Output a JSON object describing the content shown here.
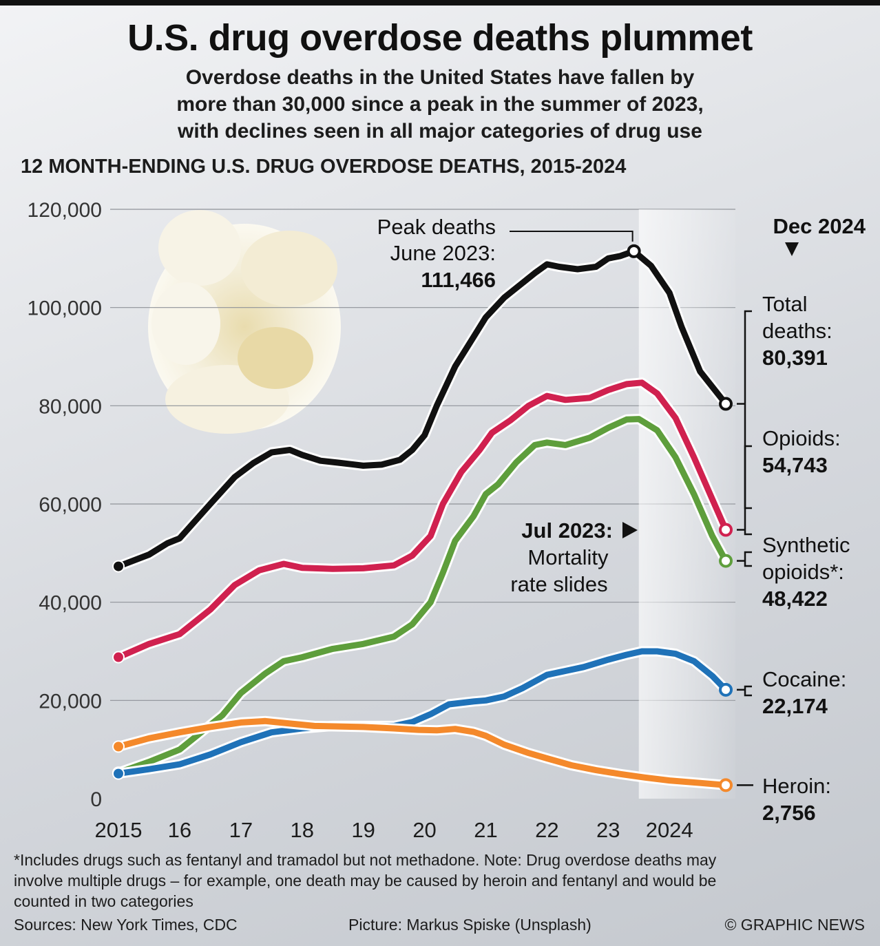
{
  "title": "U.S. drug overdose deaths plummet",
  "subtitle_lines": [
    "Overdose deaths in the United States have fallen by",
    "more than 30,000 since a peak in the summer of 2023,",
    "with declines seen in all major categories of drug use"
  ],
  "chart_data": {
    "type": "line",
    "title": "12 MONTH-ENDING U.S. DRUG OVERDOSE DEATHS, 2015-2024",
    "xlabel": "",
    "ylabel": "",
    "xlim": [
      2015.0,
      2024.92
    ],
    "ylim": [
      0,
      120000
    ],
    "yticks": [
      0,
      20000,
      40000,
      60000,
      80000,
      100000,
      120000
    ],
    "ytick_labels": [
      "0",
      "20,000",
      "40,000",
      "60,000",
      "80,000",
      "100,000",
      "120,000"
    ],
    "xticks": [
      2015,
      2016,
      2017,
      2018,
      2019,
      2020,
      2021,
      2022,
      2023,
      2024
    ],
    "xtick_labels": [
      "2015",
      "16",
      "17",
      "18",
      "19",
      "20",
      "21",
      "22",
      "23",
      "2024"
    ],
    "grid": true,
    "highlight_band": [
      2023.5,
      2024.92
    ],
    "series": [
      {
        "name": "Total deaths",
        "color": "#111111",
        "points": [
          [
            2015.0,
            47300
          ],
          [
            2015.5,
            49700
          ],
          [
            2015.8,
            52000
          ],
          [
            2016.0,
            53000
          ],
          [
            2016.5,
            60000
          ],
          [
            2016.9,
            65500
          ],
          [
            2017.2,
            68300
          ],
          [
            2017.5,
            70500
          ],
          [
            2017.8,
            71000
          ],
          [
            2018.0,
            70000
          ],
          [
            2018.3,
            68800
          ],
          [
            2018.6,
            68400
          ],
          [
            2019.0,
            67800
          ],
          [
            2019.3,
            68000
          ],
          [
            2019.6,
            69000
          ],
          [
            2019.8,
            71000
          ],
          [
            2020.0,
            74000
          ],
          [
            2020.2,
            80000
          ],
          [
            2020.5,
            88000
          ],
          [
            2020.8,
            94000
          ],
          [
            2021.0,
            98000
          ],
          [
            2021.3,
            102000
          ],
          [
            2021.6,
            105000
          ],
          [
            2021.8,
            107000
          ],
          [
            2022.0,
            108800
          ],
          [
            2022.2,
            108300
          ],
          [
            2022.5,
            107800
          ],
          [
            2022.8,
            108300
          ],
          [
            2023.0,
            110000
          ],
          [
            2023.2,
            110500
          ],
          [
            2023.42,
            111466
          ],
          [
            2023.7,
            108500
          ],
          [
            2024.0,
            103000
          ],
          [
            2024.2,
            96000
          ],
          [
            2024.5,
            87000
          ],
          [
            2024.92,
            80391
          ]
        ]
      },
      {
        "name": "Opioids",
        "color": "#d0214f",
        "points": [
          [
            2015.0,
            28800
          ],
          [
            2015.5,
            31500
          ],
          [
            2016.0,
            33500
          ],
          [
            2016.5,
            38500
          ],
          [
            2016.9,
            43500
          ],
          [
            2017.3,
            46500
          ],
          [
            2017.7,
            47800
          ],
          [
            2018.0,
            47000
          ],
          [
            2018.5,
            46800
          ],
          [
            2019.0,
            46900
          ],
          [
            2019.5,
            47500
          ],
          [
            2019.8,
            49500
          ],
          [
            2020.1,
            53500
          ],
          [
            2020.3,
            60000
          ],
          [
            2020.6,
            66500
          ],
          [
            2020.9,
            71000
          ],
          [
            2021.1,
            74500
          ],
          [
            2021.4,
            77000
          ],
          [
            2021.7,
            80000
          ],
          [
            2022.0,
            82000
          ],
          [
            2022.3,
            81200
          ],
          [
            2022.7,
            81600
          ],
          [
            2023.0,
            83200
          ],
          [
            2023.3,
            84400
          ],
          [
            2023.55,
            84700
          ],
          [
            2023.8,
            82500
          ],
          [
            2024.1,
            77500
          ],
          [
            2024.4,
            69500
          ],
          [
            2024.7,
            61000
          ],
          [
            2024.92,
            54743
          ]
        ]
      },
      {
        "name": "Synthetic opioids*",
        "color": "#5e9e3c",
        "points": [
          [
            2015.0,
            5300
          ],
          [
            2015.5,
            7500
          ],
          [
            2016.0,
            10000
          ],
          [
            2016.3,
            13000
          ],
          [
            2016.7,
            17000
          ],
          [
            2017.0,
            21500
          ],
          [
            2017.4,
            25500
          ],
          [
            2017.7,
            28000
          ],
          [
            2018.0,
            28800
          ],
          [
            2018.5,
            30500
          ],
          [
            2019.0,
            31500
          ],
          [
            2019.5,
            33000
          ],
          [
            2019.8,
            35500
          ],
          [
            2020.1,
            40000
          ],
          [
            2020.3,
            46000
          ],
          [
            2020.5,
            52500
          ],
          [
            2020.8,
            57500
          ],
          [
            2021.0,
            62000
          ],
          [
            2021.2,
            64000
          ],
          [
            2021.5,
            68500
          ],
          [
            2021.8,
            72000
          ],
          [
            2022.0,
            72500
          ],
          [
            2022.3,
            72000
          ],
          [
            2022.7,
            73500
          ],
          [
            2023.0,
            75500
          ],
          [
            2023.3,
            77200
          ],
          [
            2023.5,
            77300
          ],
          [
            2023.8,
            75000
          ],
          [
            2024.1,
            69500
          ],
          [
            2024.4,
            62000
          ],
          [
            2024.7,
            53500
          ],
          [
            2024.92,
            48422
          ]
        ]
      },
      {
        "name": "Cocaine",
        "color": "#1f72b8",
        "points": [
          [
            2015.0,
            5100
          ],
          [
            2015.5,
            6000
          ],
          [
            2016.0,
            7000
          ],
          [
            2016.5,
            9000
          ],
          [
            2017.0,
            11500
          ],
          [
            2017.5,
            13500
          ],
          [
            2018.0,
            14300
          ],
          [
            2018.5,
            14800
          ],
          [
            2019.0,
            14800
          ],
          [
            2019.5,
            14800
          ],
          [
            2019.8,
            15600
          ],
          [
            2020.1,
            17200
          ],
          [
            2020.4,
            19200
          ],
          [
            2020.8,
            19800
          ],
          [
            2021.0,
            20000
          ],
          [
            2021.3,
            20800
          ],
          [
            2021.6,
            22500
          ],
          [
            2022.0,
            25200
          ],
          [
            2022.3,
            26000
          ],
          [
            2022.6,
            26800
          ],
          [
            2023.0,
            28300
          ],
          [
            2023.3,
            29300
          ],
          [
            2023.55,
            30000
          ],
          [
            2023.8,
            30000
          ],
          [
            2024.1,
            29500
          ],
          [
            2024.4,
            28000
          ],
          [
            2024.7,
            25000
          ],
          [
            2024.92,
            22174
          ]
        ]
      },
      {
        "name": "Heroin",
        "color": "#f4892b",
        "points": [
          [
            2015.0,
            10600
          ],
          [
            2015.5,
            12300
          ],
          [
            2016.0,
            13500
          ],
          [
            2016.5,
            14600
          ],
          [
            2017.0,
            15500
          ],
          [
            2017.4,
            15800
          ],
          [
            2017.8,
            15300
          ],
          [
            2018.2,
            14800
          ],
          [
            2018.6,
            14700
          ],
          [
            2019.0,
            14600
          ],
          [
            2019.5,
            14300
          ],
          [
            2019.9,
            14000
          ],
          [
            2020.2,
            13900
          ],
          [
            2020.5,
            14200
          ],
          [
            2020.8,
            13600
          ],
          [
            2021.0,
            12800
          ],
          [
            2021.3,
            11000
          ],
          [
            2021.7,
            9300
          ],
          [
            2022.0,
            8200
          ],
          [
            2022.4,
            6800
          ],
          [
            2022.8,
            5800
          ],
          [
            2023.2,
            5000
          ],
          [
            2023.6,
            4300
          ],
          [
            2024.0,
            3700
          ],
          [
            2024.5,
            3200
          ],
          [
            2024.92,
            2756
          ]
        ]
      }
    ],
    "annotations": {
      "peak": {
        "line1": "Peak deaths",
        "line2": "June 2023:",
        "value": "111,466"
      },
      "slide": {
        "title": "Jul 2023:",
        "line1": "Mortality",
        "line2": "rate slides"
      },
      "end_date": "Dec 2024"
    },
    "end_labels": [
      {
        "series": "Total deaths",
        "lines": [
          "Total",
          "deaths:"
        ],
        "value": "80,391"
      },
      {
        "series": "Opioids",
        "lines": [
          "Opioids:"
        ],
        "value": "54,743"
      },
      {
        "series": "Synthetic opioids*",
        "lines": [
          "Synthetic",
          "opioids*:"
        ],
        "value": "48,422"
      },
      {
        "series": "Cocaine",
        "lines": [
          "Cocaine:"
        ],
        "value": "22,174"
      },
      {
        "series": "Heroin",
        "lines": [
          "Heroin:"
        ],
        "value": "2,756"
      }
    ]
  },
  "footnote_lines": [
    "*Includes drugs such as fentanyl and tramadol but not methadone. Note: Drug overdose deaths may",
    "involve multiple drugs – for example, one death may be caused by heroin and fentanyl and would be",
    "counted in two categories"
  ],
  "sources": "Sources: New York Times, CDC",
  "picture_credit": "Picture: Markus Spiske (Unsplash)",
  "copyright": "© GRAPHIC NEWS"
}
